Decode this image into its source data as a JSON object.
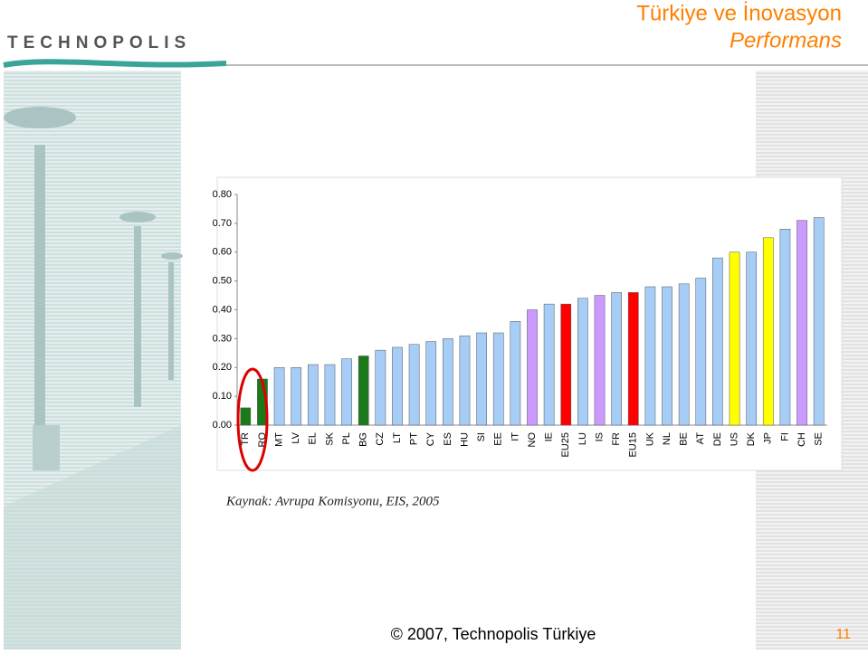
{
  "slide": {
    "logo": "TECHNOPOLIS",
    "title_line1": "Türkiye ve İnovasyon",
    "title_line2": "Performans",
    "source": "Kaynak: Avrupa Komisyonu, EIS, 2005",
    "footer": "© 2007, Technopolis Türkiye",
    "page": "11"
  },
  "chart_data": {
    "type": "bar",
    "categories": [
      "TR",
      "RO",
      "MT",
      "LV",
      "EL",
      "SK",
      "PL",
      "BG",
      "CZ",
      "LT",
      "PT",
      "CY",
      "ES",
      "HU",
      "SI",
      "EE",
      "IT",
      "NO",
      "IE",
      "EU25",
      "LU",
      "IS",
      "FR",
      "EU15",
      "UK",
      "NL",
      "BE",
      "AT",
      "DE",
      "US",
      "DK",
      "JP",
      "FI",
      "CH",
      "SE"
    ],
    "values": [
      0.06,
      0.16,
      0.2,
      0.2,
      0.21,
      0.21,
      0.23,
      0.24,
      0.26,
      0.27,
      0.28,
      0.29,
      0.3,
      0.31,
      0.32,
      0.32,
      0.36,
      0.4,
      0.42,
      0.42,
      0.44,
      0.45,
      0.46,
      0.46,
      0.48,
      0.48,
      0.49,
      0.51,
      0.58,
      0.6,
      0.6,
      0.65,
      0.68,
      0.71,
      0.72
    ],
    "colors": [
      "#1a7a1a",
      "#1a7a1a",
      "#a6cdf5",
      "#a6cdf5",
      "#a6cdf5",
      "#a6cdf5",
      "#a6cdf5",
      "#1a7a1a",
      "#a6cdf5",
      "#a6cdf5",
      "#a6cdf5",
      "#a6cdf5",
      "#a6cdf5",
      "#a6cdf5",
      "#a6cdf5",
      "#a6cdf5",
      "#a6cdf5",
      "#cc99ff",
      "#a6cdf5",
      "#ff0000",
      "#a6cdf5",
      "#cc99ff",
      "#a6cdf5",
      "#ff0000",
      "#a6cdf5",
      "#a6cdf5",
      "#a6cdf5",
      "#a6cdf5",
      "#a6cdf5",
      "#ffff00",
      "#a6cdf5",
      "#ffff00",
      "#a6cdf5",
      "#cc99ff",
      "#a6cdf5"
    ],
    "ylim": [
      0,
      0.8
    ],
    "yticks": [
      {
        "value": 0,
        "label": "0.00"
      },
      {
        "value": 0.1,
        "label": "0.10"
      },
      {
        "value": 0.2,
        "label": "0.20"
      },
      {
        "value": 0.3,
        "label": "0.30"
      },
      {
        "value": 0.4,
        "label": "0.40"
      },
      {
        "value": 0.5,
        "label": "0.50"
      },
      {
        "value": 0.6,
        "label": "0.60"
      },
      {
        "value": 0.7,
        "label": "0.70"
      },
      {
        "value": 0.8,
        "label": "0.80"
      }
    ]
  }
}
